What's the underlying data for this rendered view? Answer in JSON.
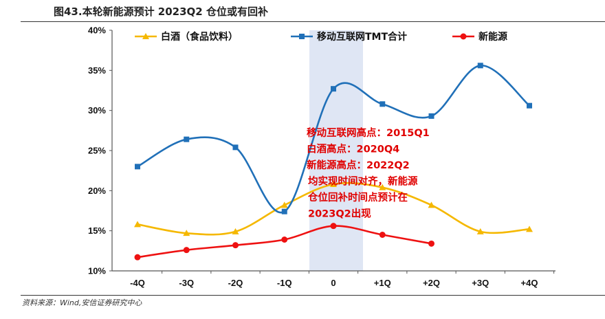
{
  "figure": {
    "title": "图43.本轮新能源预计 2023Q2 仓位或有回补",
    "source": "资料来源：Wind,安信证券研究中心"
  },
  "chart_data": {
    "type": "line",
    "categories": [
      "-4Q",
      "-3Q",
      "-2Q",
      "-1Q",
      "0",
      "+1Q",
      "+2Q",
      "+3Q",
      "+4Q"
    ],
    "ylim": [
      10,
      40
    ],
    "yticks": [
      "10%",
      "15%",
      "20%",
      "25%",
      "30%",
      "35%",
      "40%"
    ],
    "grid": false,
    "legend_position": "top",
    "highlight_band": "0",
    "series": [
      {
        "name": "白酒（食品饮料）",
        "color": "#f5b800",
        "marker": "triangle",
        "values": [
          15.8,
          14.7,
          14.9,
          18.2,
          20.8,
          20.4,
          18.2,
          14.9,
          15.2
        ]
      },
      {
        "name": "移动互联网TMT合计",
        "color": "#2070b8",
        "marker": "square",
        "values": [
          23.0,
          26.4,
          25.4,
          17.4,
          32.7,
          30.8,
          29.3,
          35.6,
          30.6
        ]
      },
      {
        "name": "新能源",
        "color": "#ee1111",
        "marker": "circle",
        "values": [
          11.7,
          12.6,
          13.2,
          13.9,
          15.6,
          14.5,
          13.4,
          null,
          null
        ]
      }
    ],
    "annotation": [
      "移动互联网高点：2015Q1",
      "白酒高点：2020Q4",
      "新能源高点：2022Q2",
      "均实现时间对齐，新能源",
      "仓位回补时间点预计在",
      "2023Q2出现"
    ]
  }
}
